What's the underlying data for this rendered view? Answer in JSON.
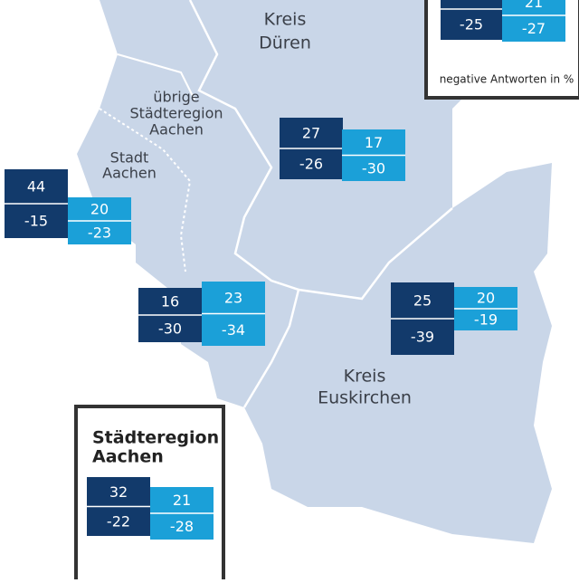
{
  "regions": [
    {
      "lines": [
        "Kreis",
        "Düren"
      ]
    },
    {
      "lines": [
        "übrige",
        "Städteregion",
        "Aachen"
      ]
    },
    {
      "lines": [
        "Stadt",
        "Aachen"
      ]
    },
    {
      "lines": [
        "Kreis",
        "Euskirchen"
      ]
    }
  ],
  "panels": [
    {
      "dark": {
        "top": 27,
        "bottom": -26
      },
      "light": {
        "top": 17,
        "bottom": -30
      }
    },
    {
      "dark": {
        "top": 44,
        "bottom": -15
      },
      "light": {
        "top": 20,
        "bottom": -23
      }
    },
    {
      "dark": {
        "top": 16,
        "bottom": -30
      },
      "light": {
        "top": 23,
        "bottom": -34
      }
    },
    {
      "dark": {
        "top": 25,
        "bottom": -39
      },
      "light": {
        "top": 20,
        "bottom": -19
      }
    }
  ],
  "legend": {
    "dark": {
      "bottom": -25
    },
    "light": {
      "top": 21,
      "bottom": -27
    },
    "note": "negative Antworten in %"
  },
  "summary": {
    "title": [
      "Städteregion",
      "Aachen"
    ],
    "dark": {
      "top": 32,
      "bottom": -22
    },
    "light": {
      "top": 21,
      "bottom": -28
    }
  }
}
